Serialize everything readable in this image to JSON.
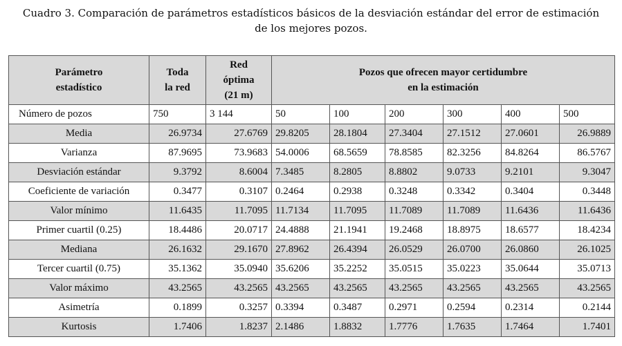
{
  "caption": {
    "line1": "Cuadro 3. Comparación de parámetros estadísticos básicos de la desviación estándar del error de estimación",
    "line2": "de los mejores pozos."
  },
  "header": {
    "parametro": [
      "Parámetro",
      "estadístico"
    ],
    "toda": [
      "Toda",
      "la red"
    ],
    "optima": [
      "Red",
      "óptima",
      "(21 m)"
    ],
    "pozos": [
      "Pozos que ofrecen mayor certidumbre",
      "en la estimación"
    ]
  },
  "rows": [
    {
      "label": "Número de pozos",
      "values": [
        "750",
        "3 144",
        "50",
        "100",
        "200",
        "300",
        "400",
        "500"
      ]
    },
    {
      "label": "Media",
      "values": [
        "26.9734",
        "27.6769",
        "29.8205",
        "28.1804",
        "27.3404",
        "27.1512",
        "27.0601",
        "26.9889"
      ]
    },
    {
      "label": "Varianza",
      "values": [
        "87.9695",
        "73.9683",
        "54.0006",
        "68.5659",
        "78.8585",
        "82.3256",
        "84.8264",
        "86.5767"
      ]
    },
    {
      "label": "Desviación estándar",
      "values": [
        "9.3792",
        "8.6004",
        "7.3485",
        "8.2805",
        "8.8802",
        "9.0733",
        "9.2101",
        "9.3047"
      ]
    },
    {
      "label": "Coeficiente de variación",
      "values": [
        "0.3477",
        "0.3107",
        "0.2464",
        "0.2938",
        "0.3248",
        "0.3342",
        "0.3404",
        "0.3448"
      ]
    },
    {
      "label": "Valor mínimo",
      "values": [
        "11.6435",
        "11.7095",
        "11.7134",
        "11.7095",
        "11.7089",
        "11.7089",
        "11.6436",
        "11.6436"
      ]
    },
    {
      "label": "Primer cuartil (0.25)",
      "values": [
        "18.4486",
        "20.0717",
        "24.4888",
        "21.1941",
        "19.2468",
        "18.8975",
        "18.6577",
        "18.4234"
      ]
    },
    {
      "label": "Mediana",
      "values": [
        "26.1632",
        "29.1670",
        "27.8962",
        "26.4394",
        "26.0529",
        "26.0700",
        "26.0860",
        "26.1025"
      ]
    },
    {
      "label": "Tercer cuartil (0.75)",
      "values": [
        "35.1362",
        "35.0940",
        "35.6206",
        "35.2252",
        "35.0515",
        "35.0223",
        "35.0644",
        "35.0713"
      ]
    },
    {
      "label": "Valor máximo",
      "values": [
        "43.2565",
        "43.2565",
        "43.2565",
        "43.2565",
        "43.2565",
        "43.2565",
        "43.2565",
        "43.2565"
      ]
    },
    {
      "label": "Asimetría",
      "values": [
        "0.1899",
        "0.3257",
        "0.3394",
        "0.3487",
        "0.2971",
        "0.2594",
        "0.2314",
        "0.2144"
      ]
    },
    {
      "label": "Kurtosis",
      "values": [
        "1.7406",
        "1.8237",
        "2.1486",
        "1.8832",
        "1.7776",
        "1.7635",
        "1.7464",
        "1.7401"
      ]
    }
  ],
  "colors": {
    "shade": "#d9d9d9",
    "border": "#555555"
  }
}
